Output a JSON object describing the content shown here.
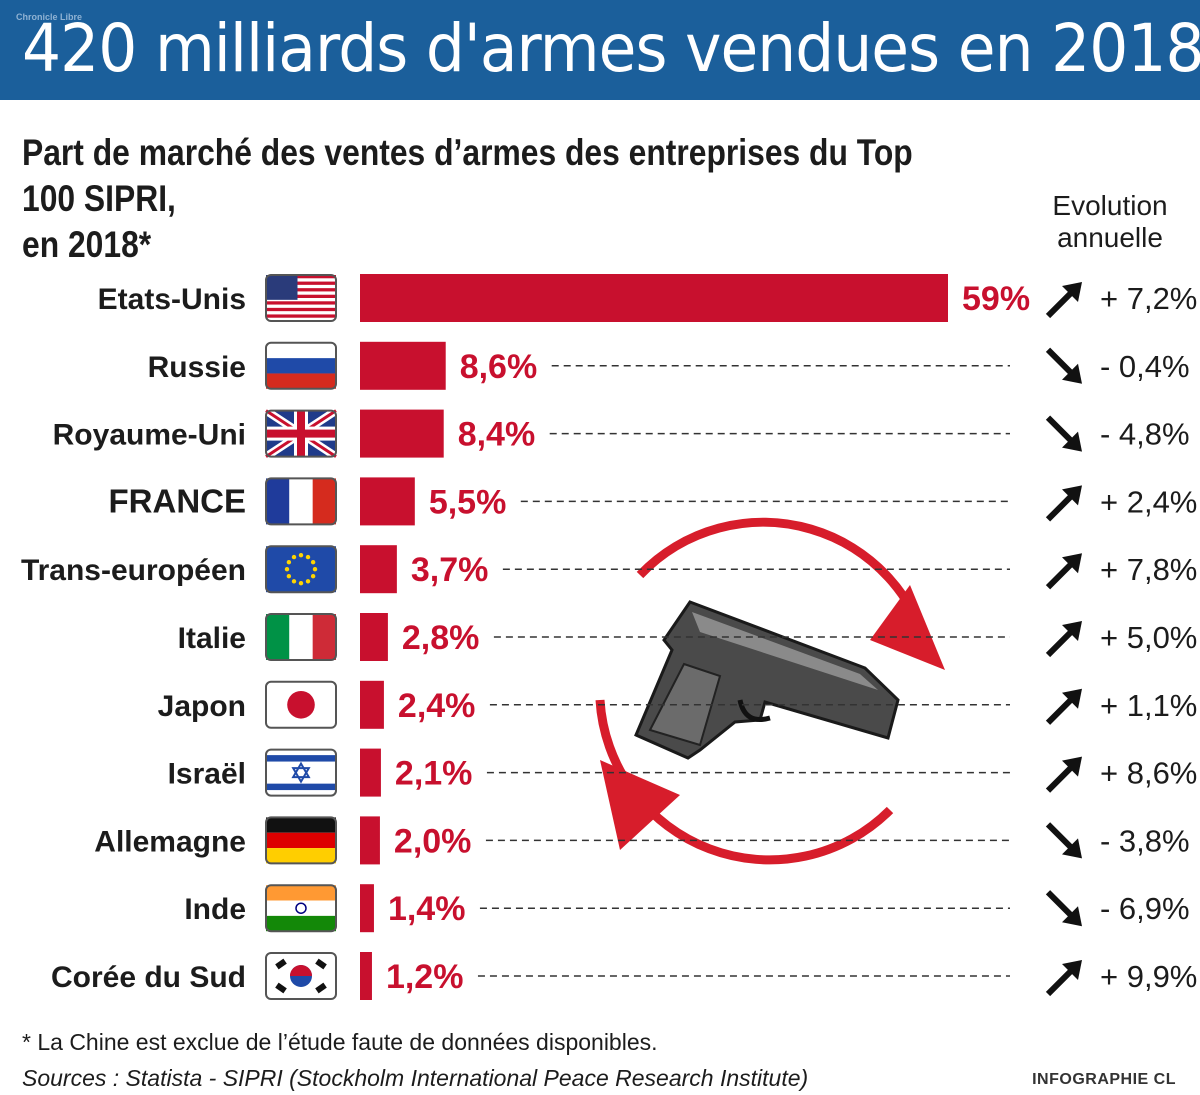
{
  "title": "420 milliards d'armes vendues en 2018",
  "brand": "Chronicle Libre",
  "subtitle_line1": "Part de marché des ventes d’armes des entreprises du Top 100 SIPRI,",
  "subtitle_line2": "en 2018*",
  "evolution_header_line1": "Evolution",
  "evolution_header_line2": "annuelle",
  "footnote": "* La Chine est exclue de l’étude faute de données disponibles.",
  "sources": "Sources : Statista - SIPRI (Stockholm International Peace Research Institute)",
  "credit": "INFOGRAPHIE CL",
  "colors": {
    "banner": "#1b5f9b",
    "bar": "#c8102e",
    "label": "#c8102e"
  },
  "chart_data": {
    "type": "bar",
    "orientation": "horizontal",
    "title": "Part de marché des ventes d’armes des entreprises du Top 100 SIPRI, en 2018*",
    "unit": "%",
    "categories": [
      "Etats-Unis",
      "Russie",
      "Royaume-Uni",
      "FRANCE",
      "Trans-européen",
      "Italie",
      "Japon",
      "Israël",
      "Allemagne",
      "Inde",
      "Corée du Sud"
    ],
    "values": [
      59,
      8.6,
      8.4,
      5.5,
      3.7,
      2.8,
      2.4,
      2.1,
      2.0,
      1.4,
      1.2
    ],
    "value_labels": [
      "59%",
      "8,6%",
      "8,4%",
      "5,5%",
      "3,7%",
      "2,8%",
      "2,4%",
      "2,1%",
      "2,0%",
      "1,4%",
      "1,2%"
    ],
    "evolution_values": [
      7.2,
      -0.4,
      -4.8,
      2.4,
      7.8,
      5.0,
      1.1,
      8.6,
      -3.8,
      -6.9,
      9.9
    ],
    "evolution_labels": [
      "+ 7,2%",
      "- 0,4%",
      "- 4,8%",
      "+ 2,4%",
      "+ 7,8%",
      "+ 5,0%",
      "+ 1,1%",
      "+ 8,6%",
      "- 3,8%",
      "- 6,9%",
      "+ 9,9%"
    ],
    "flag_icons": [
      "usa-flag-icon",
      "russia-flag-icon",
      "uk-flag-icon",
      "france-flag-icon",
      "eu-flag-icon",
      "italy-flag-icon",
      "japan-flag-icon",
      "israel-flag-icon",
      "germany-flag-icon",
      "india-flag-icon",
      "south-korea-flag-icon"
    ],
    "xlim": [
      0,
      59
    ]
  }
}
